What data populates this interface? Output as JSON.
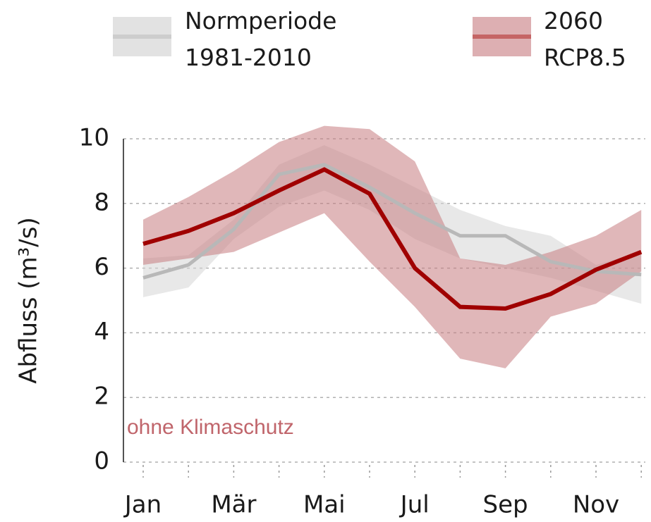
{
  "chart_data": {
    "type": "line",
    "y_label": "Abfluss (m³/s)",
    "annotation": "ohne Klimaschutz",
    "annotation_color": "#c0656b",
    "categories": [
      "Jan",
      null,
      "Mär",
      null,
      "Mai",
      null,
      "Jul",
      null,
      "Sep",
      null,
      "Nov",
      null
    ],
    "series": [
      {
        "name": "Normperiode 1981-2010",
        "color": "#b8b8b8",
        "band_color": "#d6d6d6",
        "values": [
          5.7,
          6.1,
          7.2,
          8.9,
          9.2,
          8.5,
          7.7,
          7.0,
          7.0,
          6.2,
          5.9,
          5.8
        ],
        "lower": [
          5.1,
          5.4,
          6.9,
          7.9,
          8.4,
          7.8,
          6.9,
          6.3,
          6.0,
          5.7,
          5.3,
          4.9
        ],
        "upper": [
          6.3,
          6.4,
          7.5,
          9.2,
          9.8,
          9.2,
          8.5,
          7.8,
          7.3,
          7.0,
          6.1,
          6.5
        ]
      },
      {
        "name": "2060 RCP8.5",
        "color": "#a00000",
        "band_color": "#c77b7f",
        "values": [
          6.75,
          7.15,
          7.7,
          8.4,
          9.05,
          8.3,
          6.0,
          4.8,
          4.75,
          5.2,
          5.95,
          6.5
        ],
        "lower": [
          6.1,
          6.3,
          6.5,
          7.1,
          7.7,
          6.2,
          4.8,
          3.2,
          2.9,
          4.5,
          4.9,
          5.9
        ],
        "upper": [
          7.5,
          8.2,
          9.0,
          9.9,
          10.4,
          10.3,
          9.3,
          6.3,
          6.1,
          6.5,
          7.0,
          7.8
        ]
      }
    ],
    "ylim": [
      0,
      10
    ],
    "yticks": [
      0,
      2,
      4,
      6,
      8,
      10
    ],
    "grid": true
  }
}
